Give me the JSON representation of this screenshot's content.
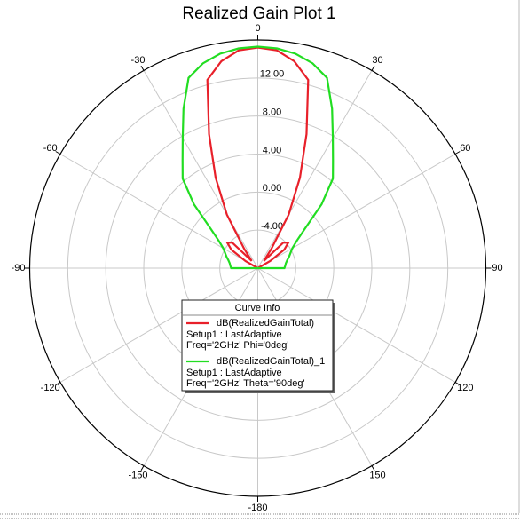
{
  "chart_data": {
    "type": "polar",
    "title": "Realized Gain Plot 1",
    "legend_title": "Curve Info",
    "theta": [
      -180,
      -175,
      -170,
      -165,
      -160,
      -155,
      -150,
      -145,
      -140,
      -135,
      -130,
      -125,
      -120,
      -115,
      -110,
      -105,
      -100,
      -95,
      -90,
      -85,
      -80,
      -75,
      -70,
      -65,
      -60,
      -55,
      -50,
      -45,
      -40,
      -35,
      -30,
      -25,
      -20,
      -15,
      -10,
      -5,
      0,
      5,
      10,
      15,
      20,
      25,
      30,
      35,
      40,
      45,
      50,
      55,
      60,
      65,
      70,
      75,
      80,
      85,
      90,
      95,
      100,
      105,
      110,
      115,
      120,
      125,
      130,
      135,
      140,
      145,
      150,
      155,
      160,
      165,
      170,
      175,
      180
    ],
    "series": [
      {
        "name": "dB(RealizedGainTotal)",
        "setup": "Setup1 : LastAdaptive",
        "variation": "Freq='2GHz' Phi='0deg'",
        "color": "#e8202a",
        "values": [
          -8,
          -8,
          -8,
          -8,
          -8,
          -8,
          -8,
          -8,
          -8,
          -8,
          -8,
          -8,
          -8,
          -8,
          -8,
          -8,
          -8,
          -8,
          -8,
          -8,
          -8,
          -8,
          -8,
          -8,
          -6.5,
          -4.6,
          -3.8,
          -4.2,
          -7,
          -5.5,
          -1.5,
          2.5,
          7.0,
          12.5,
          14.1,
          15.0,
          15.2,
          15.0,
          14.1,
          12.5,
          7.0,
          2.5,
          -1.5,
          -5.5,
          -7,
          -4.2,
          -3.8,
          -4.6,
          -6.5,
          -8,
          -8,
          -8,
          -8,
          -8,
          -8,
          -8,
          -8,
          -8,
          -8,
          -8,
          -8,
          -8,
          -8,
          -8,
          -8,
          -8,
          -8,
          -8,
          -8,
          -8,
          -8,
          -8,
          -8
        ]
      },
      {
        "name": "dB(RealizedGainTotal)_1",
        "setup": "Setup1 : LastAdaptive",
        "variation": "Freq='2GHz' Theta='90deg'",
        "color": "#22dd22",
        "values": [
          -8,
          -8,
          -8,
          -8,
          -8,
          -8,
          -8,
          -8,
          -8,
          -8,
          -8,
          -8,
          -8,
          -8,
          -8,
          -8,
          -8,
          -8,
          -5.2,
          -5.1,
          -5,
          -4.8,
          -4.5,
          -4.2,
          -3.8,
          -3,
          -1.5,
          1.5,
          4.3,
          5.8,
          7.8,
          10.5,
          13.3,
          14.3,
          14.9,
          15.2,
          15.3,
          15.2,
          14.9,
          14.3,
          13.3,
          10.5,
          7.8,
          5.8,
          4.3,
          1.5,
          -1.5,
          -3,
          -3.8,
          -4.2,
          -4.5,
          -4.8,
          -5,
          -5.1,
          -5.2,
          -8,
          -8,
          -8,
          -8,
          -8,
          -8,
          -8,
          -8,
          -8,
          -8,
          -8,
          -8,
          -8,
          -8,
          -8,
          -8,
          -8,
          -8
        ]
      }
    ],
    "rlim": [
      -8,
      16
    ],
    "rticks": [
      {
        "value": -4,
        "label": "-4.00"
      },
      {
        "value": 0,
        "label": "0.00"
      },
      {
        "value": 4,
        "label": "4.00"
      },
      {
        "value": 8,
        "label": "8.00"
      },
      {
        "value": 12,
        "label": "12.00"
      }
    ],
    "thetaticks": [
      0,
      30,
      60,
      90,
      120,
      150,
      -180,
      -150,
      -120,
      -90,
      -60,
      -30
    ],
    "grid": true
  }
}
